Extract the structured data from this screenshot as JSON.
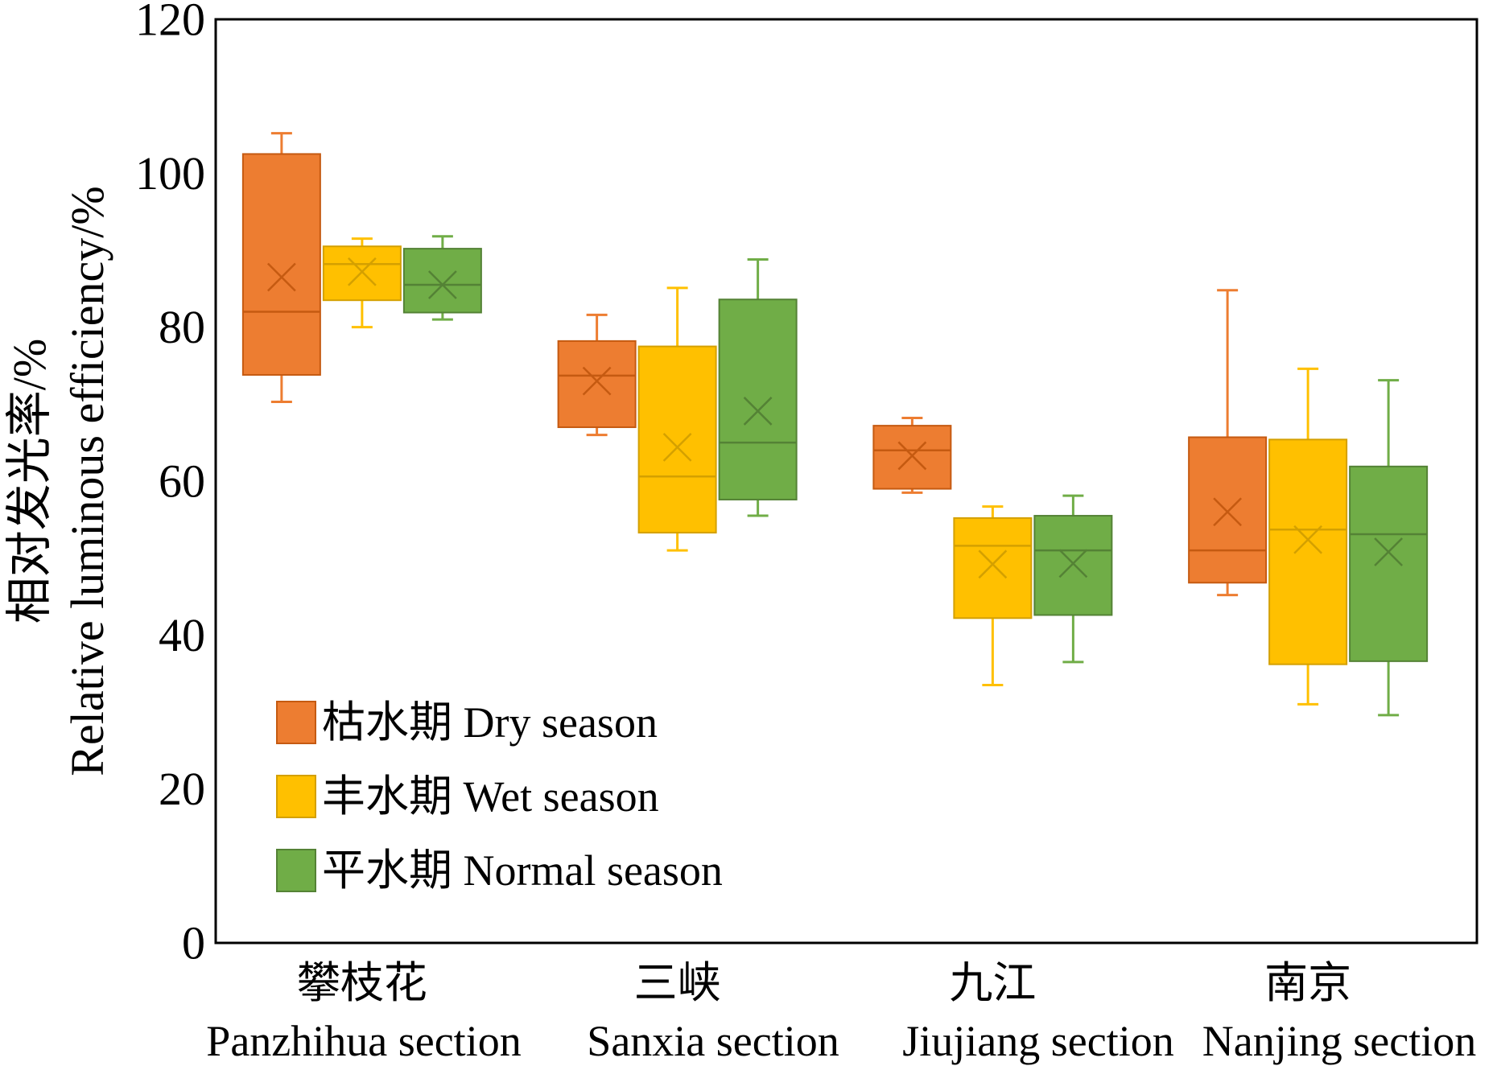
{
  "chart_data": {
    "type": "box",
    "title": "",
    "ylabel_lines": [
      "相对发光率/%",
      "Relative luminous efficiency/%"
    ],
    "ylim": [
      0,
      120
    ],
    "yticks": [
      0,
      20,
      40,
      60,
      80,
      100,
      120
    ],
    "grid": false,
    "legend_position": "bottom-left",
    "categories": [
      {
        "label_cn": "攀枝花",
        "label_en": "Panzhihua section"
      },
      {
        "label_cn": "三峡",
        "label_en": "Sanxia section"
      },
      {
        "label_cn": "九江",
        "label_en": "Jiujiang section"
      },
      {
        "label_cn": "南京",
        "label_en": "Nanjing section"
      }
    ],
    "series": [
      {
        "name": "枯水期 Dry season",
        "color": "#ED7D31",
        "stroke": "#C55A11",
        "boxes": [
          {
            "min": 70.3,
            "q1": 73.8,
            "median": 82.0,
            "q3": 102.5,
            "max": 105.2,
            "mean": 86.5
          },
          {
            "min": 66.0,
            "q1": 67.0,
            "median": 73.7,
            "q3": 78.2,
            "max": 81.6,
            "mean": 73.0
          },
          {
            "min": 58.5,
            "q1": 59.0,
            "median": 64.0,
            "q3": 67.2,
            "max": 68.2,
            "mean": 63.3
          },
          {
            "min": 45.2,
            "q1": 46.8,
            "median": 51.0,
            "q3": 65.7,
            "max": 84.8,
            "mean": 56.0
          }
        ]
      },
      {
        "name": "丰水期 Wet season",
        "color": "#FFC000",
        "stroke": "#D4A000",
        "boxes": [
          {
            "min": 80.0,
            "q1": 83.5,
            "median": 88.2,
            "q3": 90.5,
            "max": 91.5,
            "mean": 87.2
          },
          {
            "min": 51.0,
            "q1": 53.3,
            "median": 60.6,
            "q3": 77.5,
            "max": 85.1,
            "mean": 64.4
          },
          {
            "min": 33.5,
            "q1": 42.2,
            "median": 51.6,
            "q3": 55.2,
            "max": 56.7,
            "mean": 49.2
          },
          {
            "min": 31.0,
            "q1": 36.2,
            "median": 53.7,
            "q3": 65.4,
            "max": 74.6,
            "mean": 52.4
          }
        ]
      },
      {
        "name": "平水期 Normal season",
        "color": "#70AD47",
        "stroke": "#548235",
        "boxes": [
          {
            "min": 81.0,
            "q1": 81.9,
            "median": 85.5,
            "q3": 90.2,
            "max": 91.8,
            "mean": 85.5
          },
          {
            "min": 55.5,
            "q1": 57.6,
            "median": 65.0,
            "q3": 83.6,
            "max": 88.8,
            "mean": 69.1
          },
          {
            "min": 36.5,
            "q1": 42.6,
            "median": 51.0,
            "q3": 55.5,
            "max": 58.1,
            "mean": 49.3
          },
          {
            "min": 29.6,
            "q1": 36.6,
            "median": 53.1,
            "q3": 61.9,
            "max": 73.1,
            "mean": 50.8
          }
        ]
      }
    ]
  }
}
